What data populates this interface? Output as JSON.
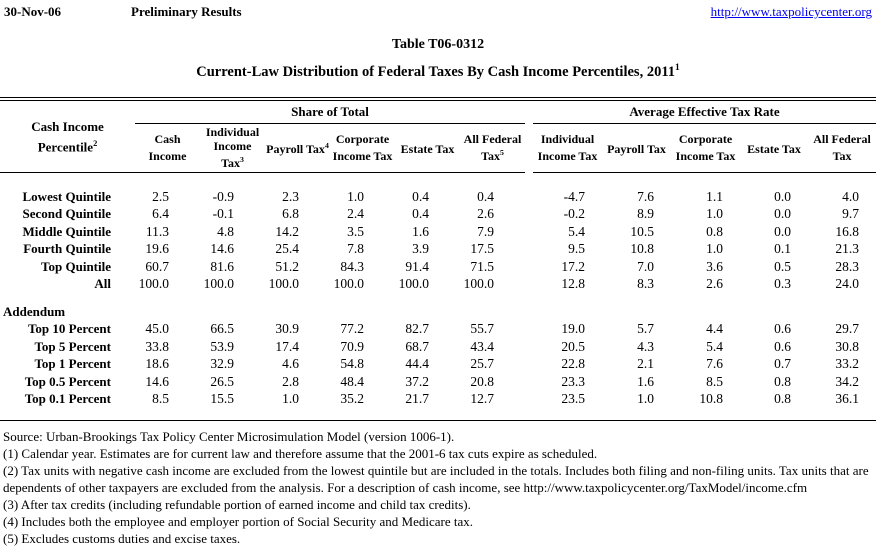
{
  "page_header": {
    "date": "30-Nov-06",
    "status": "Preliminary Results",
    "url": "http://www.taxpolicycenter.org"
  },
  "title": "Table T06-0312",
  "subtitle": "Current-Law Distribution of Federal Taxes By Cash Income Percentiles, 2011",
  "subtitle_sup": "1",
  "table": {
    "row_header": {
      "label": "Cash Income Percentile",
      "sup": "2"
    },
    "groups": [
      {
        "label": "Share of Total",
        "columns": [
          {
            "label": "Cash Income"
          },
          {
            "label": "Individual Income Tax",
            "sup": "3"
          },
          {
            "label": "Payroll Tax",
            "sup": "4"
          },
          {
            "label": "Corporate Income Tax"
          },
          {
            "label": "Estate Tax"
          },
          {
            "label": "All Federal Tax",
            "sup": "5"
          }
        ]
      },
      {
        "label": "Average Effective Tax Rate",
        "columns": [
          {
            "label": "Individual Income Tax"
          },
          {
            "label": "Payroll Tax"
          },
          {
            "label": "Corporate Income Tax"
          },
          {
            "label": "Estate Tax"
          },
          {
            "label": "All Federal Tax"
          }
        ]
      }
    ],
    "rows": [
      {
        "label": "Lowest Quintile",
        "values": [
          "2.5",
          "-0.9",
          "2.3",
          "1.0",
          "0.4",
          "0.4",
          "-4.7",
          "7.6",
          "1.1",
          "0.0",
          "4.0"
        ]
      },
      {
        "label": "Second Quintile",
        "values": [
          "6.4",
          "-0.1",
          "6.8",
          "2.4",
          "0.4",
          "2.6",
          "-0.2",
          "8.9",
          "1.0",
          "0.0",
          "9.7"
        ]
      },
      {
        "label": "Middle Quintile",
        "values": [
          "11.3",
          "4.8",
          "14.2",
          "3.5",
          "1.6",
          "7.9",
          "5.4",
          "10.5",
          "0.8",
          "0.0",
          "16.8"
        ]
      },
      {
        "label": "Fourth Quintile",
        "values": [
          "19.6",
          "14.6",
          "25.4",
          "7.8",
          "3.9",
          "17.5",
          "9.5",
          "10.8",
          "1.0",
          "0.1",
          "21.3"
        ]
      },
      {
        "label": "Top Quintile",
        "values": [
          "60.7",
          "81.6",
          "51.2",
          "84.3",
          "91.4",
          "71.5",
          "17.2",
          "7.0",
          "3.6",
          "0.5",
          "28.3"
        ]
      },
      {
        "label": "All",
        "values": [
          "100.0",
          "100.0",
          "100.0",
          "100.0",
          "100.0",
          "100.0",
          "12.8",
          "8.3",
          "2.6",
          "0.3",
          "24.0"
        ]
      },
      {
        "label": "Addendum",
        "section": true
      },
      {
        "label": "Top 10 Percent",
        "values": [
          "45.0",
          "66.5",
          "30.9",
          "77.2",
          "82.7",
          "55.7",
          "19.0",
          "5.7",
          "4.4",
          "0.6",
          "29.7"
        ]
      },
      {
        "label": "Top 5 Percent",
        "values": [
          "33.8",
          "53.9",
          "17.4",
          "70.9",
          "68.7",
          "43.4",
          "20.5",
          "4.3",
          "5.4",
          "0.6",
          "30.8"
        ]
      },
      {
        "label": "Top 1 Percent",
        "values": [
          "18.6",
          "32.9",
          "4.6",
          "54.8",
          "44.4",
          "25.7",
          "22.8",
          "2.1",
          "7.6",
          "0.7",
          "33.2"
        ]
      },
      {
        "label": "Top 0.5 Percent",
        "values": [
          "14.6",
          "26.5",
          "2.8",
          "48.4",
          "37.2",
          "20.8",
          "23.3",
          "1.6",
          "8.5",
          "0.8",
          "34.2"
        ]
      },
      {
        "label": "Top 0.1 Percent",
        "values": [
          "8.5",
          "15.5",
          "1.0",
          "35.2",
          "21.7",
          "12.7",
          "23.5",
          "1.0",
          "10.8",
          "0.8",
          "36.1"
        ]
      }
    ]
  },
  "footnotes": [
    "Source: Urban-Brookings Tax Policy Center Microsimulation Model (version 1006-1).",
    "(1) Calendar year.  Estimates are for current law and therefore assume that the 2001-6 tax cuts expire as scheduled.",
    "(2) Tax units with negative cash income are excluded from the lowest quintile but are included in the totals. Includes both filing and non-filing units. Tax units that are dependents of other taxpayers are excluded from the analysis. For a description of cash income, see http://www.taxpolicycenter.org/TaxModel/income.cfm",
    "(3) After tax credits (including refundable portion of earned income and child tax credits).",
    "(4) Includes both the employee and employer portion of Social Security and Medicare tax.",
    "(5) Excludes customs duties and excise taxes."
  ],
  "colors": {
    "link": "#0000ee",
    "text": "#000000",
    "background": "#ffffff"
  }
}
